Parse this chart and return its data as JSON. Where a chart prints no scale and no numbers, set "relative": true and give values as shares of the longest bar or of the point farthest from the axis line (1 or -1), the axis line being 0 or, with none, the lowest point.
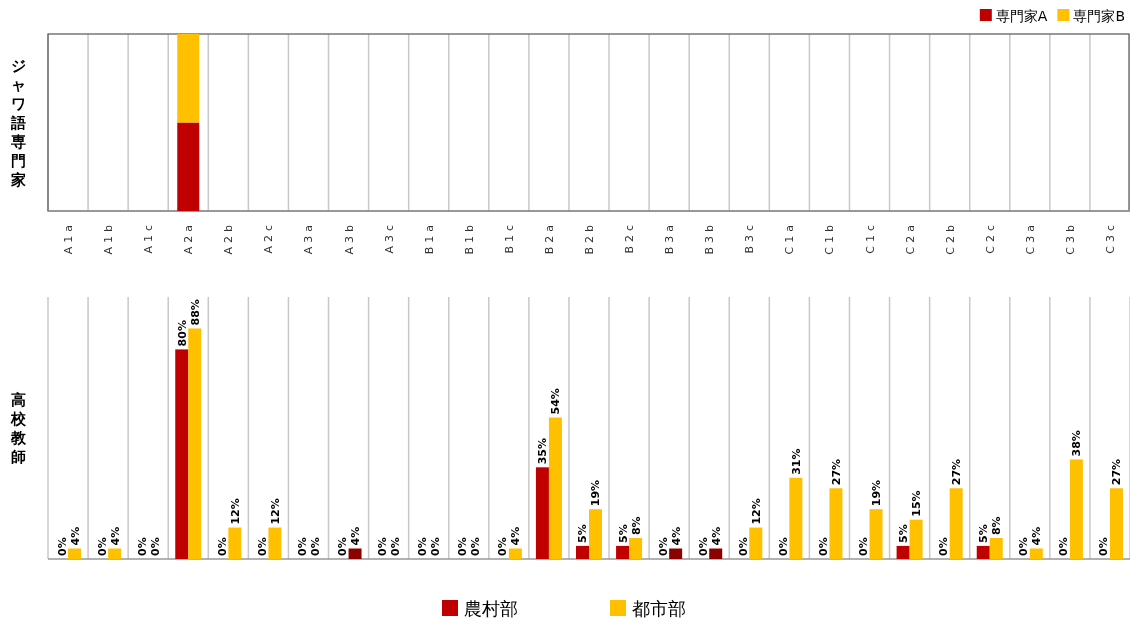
{
  "chart_data": [
    {
      "type": "bar",
      "stacked": true,
      "relative": true,
      "ylabel": "ジャワ語専門家",
      "categories": [
        "A1a",
        "A1b",
        "A1c",
        "A2a",
        "A2b",
        "A2c",
        "A3a",
        "A3b",
        "A3c",
        "B1a",
        "B1b",
        "B1c",
        "B2a",
        "B2b",
        "B2c",
        "B3a",
        "B3b",
        "B3c",
        "C1a",
        "C1b",
        "C1c",
        "C2a",
        "C2b",
        "C2c",
        "C3a",
        "C3b",
        "C3c"
      ],
      "series": [
        {
          "name": "専門家A",
          "color": "#c00000",
          "values": [
            0,
            0,
            0,
            0.5,
            0,
            0,
            0,
            0,
            0,
            0,
            0,
            0,
            0,
            0,
            0,
            0,
            0,
            0,
            0,
            0,
            0,
            0,
            0,
            0,
            0,
            0,
            0
          ]
        },
        {
          "name": "専門家B",
          "color": "#ffc000",
          "values": [
            0,
            0,
            0,
            0.5,
            0,
            0,
            0,
            0,
            0,
            0,
            0,
            0,
            0,
            0,
            0,
            0,
            0,
            0,
            0,
            0,
            0,
            0,
            0,
            0,
            0,
            0,
            0
          ]
        }
      ],
      "legend": "top right",
      "grid": "x"
    },
    {
      "type": "bar",
      "ylabel": "高校教師",
      "categories": [
        null,
        null,
        null,
        null,
        null,
        null,
        null,
        null,
        null,
        null,
        null,
        null,
        null,
        null,
        null,
        null,
        null,
        null,
        null,
        null,
        null,
        null,
        null,
        null,
        null,
        null,
        null
      ],
      "ylim": [
        0,
        100
      ],
      "series": [
        {
          "name": "農村部",
          "color": "#c00000",
          "values": [
            0,
            0,
            0,
            80,
            0,
            0,
            0,
            0,
            0,
            0,
            0,
            0,
            35,
            5,
            5,
            0,
            0,
            0,
            0,
            0,
            0,
            5,
            0,
            5,
            0,
            0,
            0
          ],
          "value_labels": [
            "0%",
            "0%",
            "0%",
            "80%",
            "0%",
            "0%",
            "0%",
            "0%",
            "0%",
            "0%",
            "0%",
            "0%",
            "35%",
            "5%",
            "5%",
            "0%",
            "0%",
            "0%",
            "0%",
            "0%",
            "0%",
            "5%",
            "0%",
            "5%",
            "0%",
            "0%",
            "0%"
          ]
        },
        {
          "name": "都市部",
          "color": "#ffc000",
          "colors": [
            "#ffc000",
            "#ffc000",
            "#ffc000",
            "#ffc000",
            "#ffc000",
            "#ffc000",
            "#ffc000",
            "#8b0000",
            "#ffc000",
            "#ffc000",
            "#ffc000",
            "#ffc000",
            "#ffc000",
            "#ffc000",
            "#ffc000",
            "#8b0000",
            "#8b0000",
            "#ffc000",
            "#ffc000",
            "#ffc000",
            "#ffc000",
            "#ffc000",
            "#ffc000",
            "#ffc000",
            "#ffc000",
            "#ffc000",
            "#ffc000"
          ],
          "values": [
            4,
            4,
            0,
            88,
            12,
            12,
            0,
            4,
            0,
            0,
            0,
            4,
            54,
            19,
            8,
            4,
            4,
            12,
            31,
            27,
            19,
            15,
            27,
            8,
            4,
            38,
            27
          ],
          "value_labels": [
            "4%",
            "4%",
            "0%",
            "88%",
            "12%",
            "12%",
            "0%",
            "4%",
            "0%",
            "0%",
            "0%",
            "4%",
            "54%",
            "19%",
            "8%",
            "4%",
            "4%",
            "12%",
            "31%",
            "27%",
            "19%",
            "15%",
            "27%",
            "8%",
            "4%",
            "38%",
            "27%"
          ]
        }
      ],
      "legend": "bottom",
      "grid": "x"
    }
  ]
}
